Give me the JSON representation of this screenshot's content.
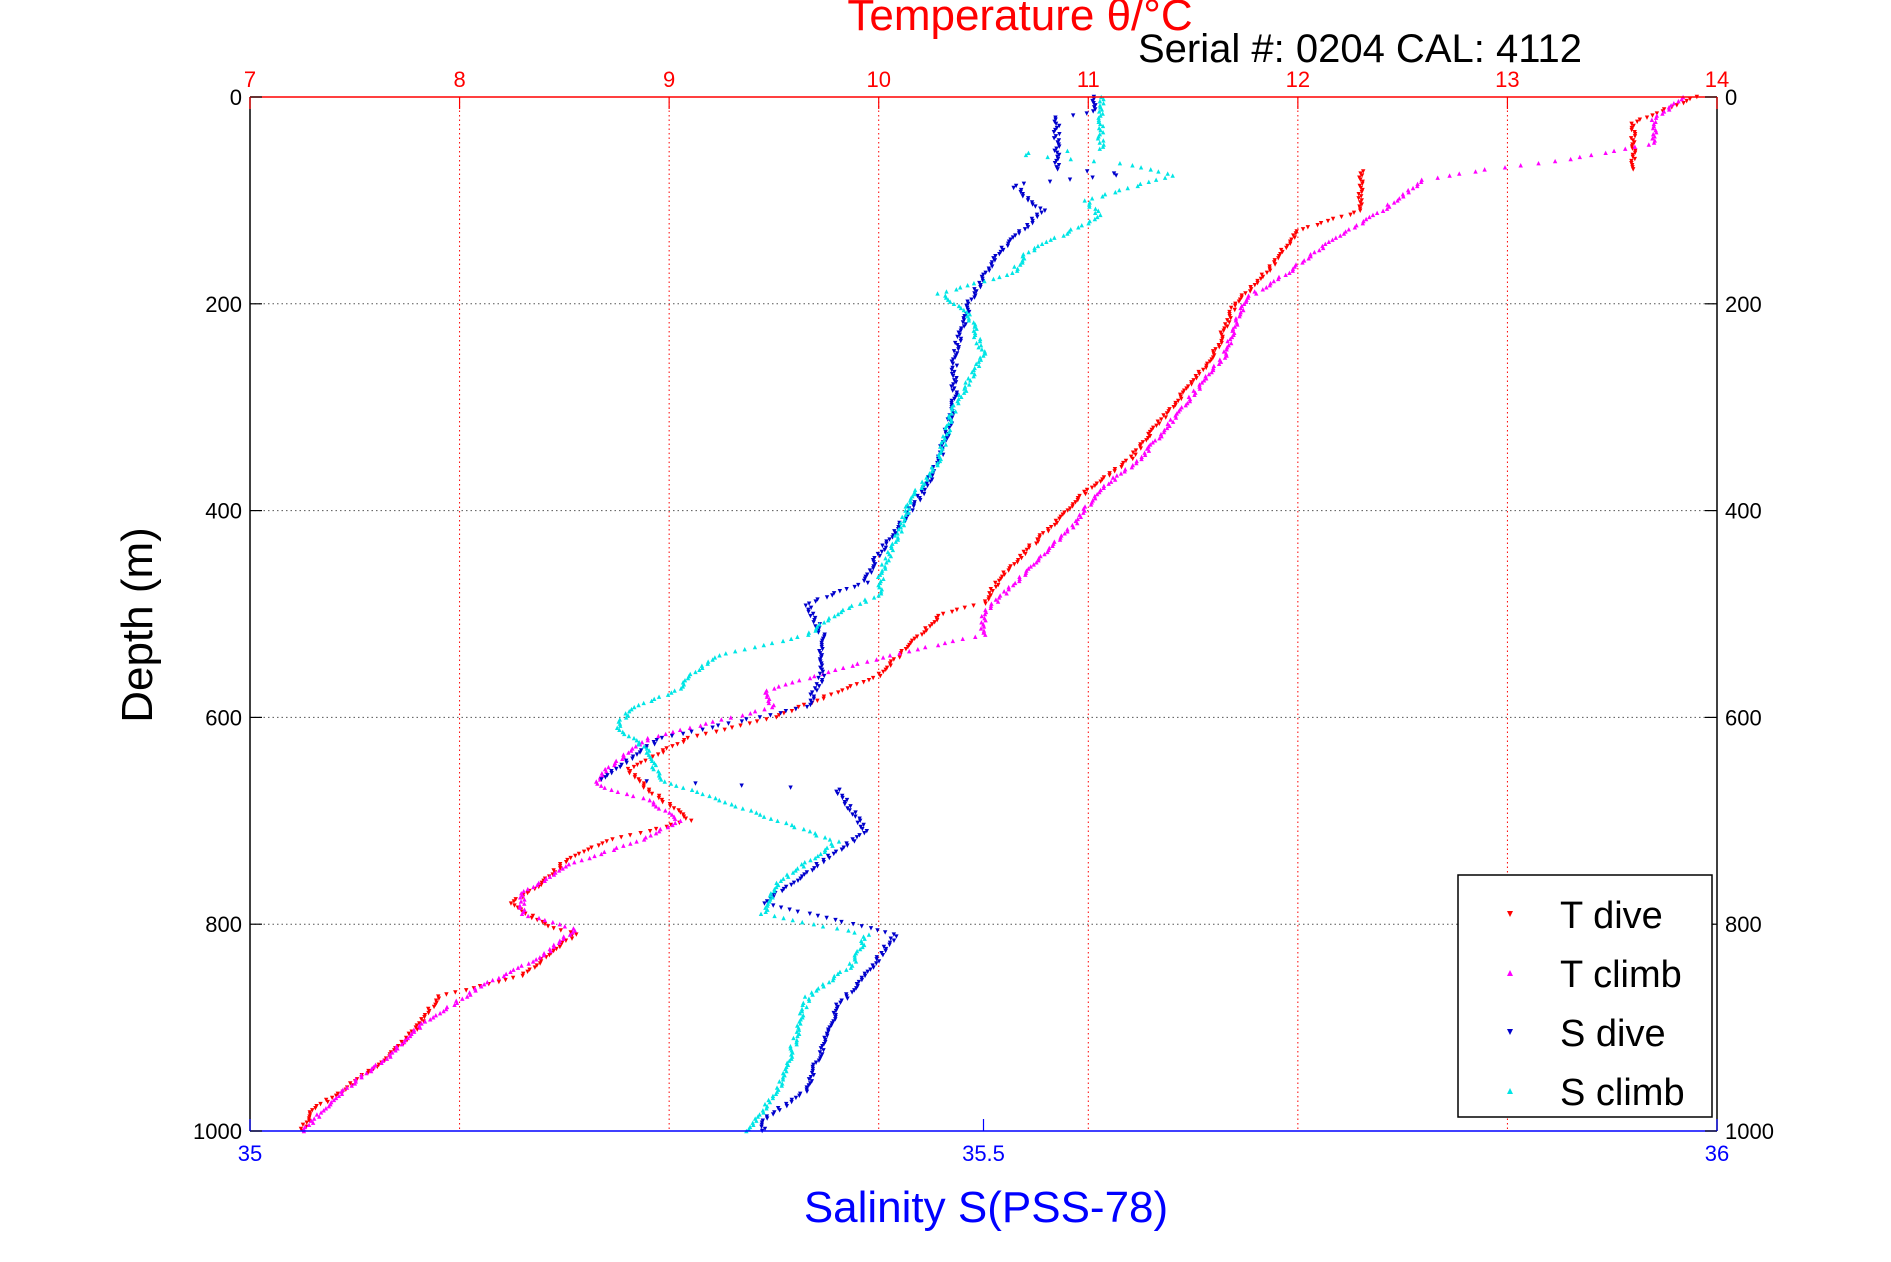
{
  "header": {
    "title": "Temperature θ/°C",
    "serial": "Serial #: 0204  CAL: 4112"
  },
  "chart_data": {
    "type": "scatter",
    "title": "Temperature θ/°C",
    "annotation": "Serial #: 0204  CAL: 4112",
    "ylabel": "Depth (m)",
    "xlabel_bottom": "Salinity S(PSS-78)",
    "xlabel_top": "Temperature θ/°C",
    "ylim": [
      0,
      1000
    ],
    "y_reversed": true,
    "x_bottom_lim": [
      35,
      36
    ],
    "x_top_lim": [
      7,
      14
    ],
    "y_ticks": [
      "0",
      "200",
      "400",
      "600",
      "800",
      "1000"
    ],
    "y_tick_values": [
      0,
      200,
      400,
      600,
      800,
      1000
    ],
    "x_bottom_ticks": [
      "35",
      "35.5",
      "36"
    ],
    "x_bottom_tick_values": [
      35,
      35.5,
      36
    ],
    "x_top_ticks": [
      "7",
      "8",
      "9",
      "10",
      "11",
      "12",
      "13",
      "14"
    ],
    "x_top_tick_values": [
      7,
      8,
      9,
      10,
      11,
      12,
      13,
      14
    ],
    "grid": true,
    "legend_position": "bottom-right",
    "colors": {
      "t_dive": "#ff0000",
      "t_climb": "#ff00ff",
      "s_dive": "#0000cc",
      "s_climb": "#00e5e5",
      "temperature_axis": "#ff0000",
      "salinity_axis": "#0000ff"
    },
    "series": [
      {
        "name": "T dive",
        "axis": "temperature",
        "profile": [
          [
            0,
            13.9
          ],
          [
            25,
            13.6
          ],
          [
            70,
            13.6
          ],
          [
            72,
            12.3
          ],
          [
            110,
            12.3
          ],
          [
            130,
            12.0
          ],
          [
            170,
            11.85
          ],
          [
            200,
            11.7
          ],
          [
            250,
            11.6
          ],
          [
            300,
            11.4
          ],
          [
            350,
            11.2
          ],
          [
            380,
            11.0
          ],
          [
            420,
            10.8
          ],
          [
            460,
            10.6
          ],
          [
            490,
            10.5
          ],
          [
            500,
            10.3
          ],
          [
            530,
            10.15
          ],
          [
            560,
            10.0
          ],
          [
            600,
            9.5
          ],
          [
            620,
            9.1
          ],
          [
            650,
            8.8
          ],
          [
            670,
            8.9
          ],
          [
            700,
            9.1
          ],
          [
            720,
            8.7
          ],
          [
            740,
            8.5
          ],
          [
            760,
            8.4
          ],
          [
            780,
            8.25
          ],
          [
            800,
            8.4
          ],
          [
            810,
            8.55
          ],
          [
            850,
            8.3
          ],
          [
            870,
            7.9
          ],
          [
            900,
            7.8
          ],
          [
            930,
            7.65
          ],
          [
            960,
            7.45
          ],
          [
            980,
            7.3
          ],
          [
            1000,
            7.25
          ]
        ]
      },
      {
        "name": "T climb",
        "axis": "temperature",
        "profile": [
          [
            0,
            13.85
          ],
          [
            20,
            13.7
          ],
          [
            45,
            13.7
          ],
          [
            60,
            13.3
          ],
          [
            70,
            12.9
          ],
          [
            80,
            12.6
          ],
          [
            110,
            12.4
          ],
          [
            140,
            12.15
          ],
          [
            170,
            11.95
          ],
          [
            195,
            11.75
          ],
          [
            220,
            11.7
          ],
          [
            250,
            11.65
          ],
          [
            300,
            11.45
          ],
          [
            350,
            11.25
          ],
          [
            380,
            11.05
          ],
          [
            410,
            10.95
          ],
          [
            450,
            10.75
          ],
          [
            480,
            10.6
          ],
          [
            500,
            10.5
          ],
          [
            520,
            10.5
          ],
          [
            540,
            10.05
          ],
          [
            560,
            9.7
          ],
          [
            575,
            9.45
          ],
          [
            590,
            9.5
          ],
          [
            620,
            8.9
          ],
          [
            650,
            8.7
          ],
          [
            665,
            8.65
          ],
          [
            680,
            8.9
          ],
          [
            700,
            9.05
          ],
          [
            720,
            8.85
          ],
          [
            740,
            8.55
          ],
          [
            770,
            8.3
          ],
          [
            790,
            8.3
          ],
          [
            805,
            8.55
          ],
          [
            830,
            8.4
          ],
          [
            860,
            8.1
          ],
          [
            900,
            7.8
          ],
          [
            930,
            7.65
          ],
          [
            960,
            7.45
          ],
          [
            990,
            7.3
          ],
          [
            1000,
            7.25
          ]
        ]
      },
      {
        "name": "S dive",
        "axis": "salinity",
        "profile": [
          [
            0,
            35.575
          ],
          [
            15,
            35.575
          ],
          [
            20,
            35.55
          ],
          [
            60,
            35.55
          ],
          [
            70,
            35.55
          ],
          [
            75,
            35.6
          ],
          [
            85,
            35.52
          ],
          [
            110,
            35.54
          ],
          [
            125,
            35.53
          ],
          [
            150,
            35.51
          ],
          [
            175,
            35.5
          ],
          [
            200,
            35.49
          ],
          [
            250,
            35.48
          ],
          [
            300,
            35.48
          ],
          [
            350,
            35.47
          ],
          [
            380,
            35.46
          ],
          [
            420,
            35.44
          ],
          [
            450,
            35.425
          ],
          [
            470,
            35.42
          ],
          [
            490,
            35.38
          ],
          [
            520,
            35.39
          ],
          [
            560,
            35.39
          ],
          [
            590,
            35.38
          ],
          [
            620,
            35.28
          ],
          [
            640,
            35.26
          ],
          [
            650,
            35.25
          ],
          [
            660,
            35.24
          ],
          [
            670,
            35.4
          ],
          [
            690,
            35.41
          ],
          [
            710,
            35.42
          ],
          [
            740,
            35.39
          ],
          [
            780,
            35.35
          ],
          [
            810,
            35.44
          ],
          [
            830,
            35.43
          ],
          [
            850,
            35.42
          ],
          [
            880,
            35.4
          ],
          [
            920,
            35.39
          ],
          [
            960,
            35.38
          ],
          [
            990,
            35.35
          ],
          [
            1000,
            35.35
          ]
        ]
      },
      {
        "name": "S climb",
        "axis": "salinity",
        "profile": [
          [
            0,
            35.58
          ],
          [
            30,
            35.58
          ],
          [
            50,
            35.58
          ],
          [
            55,
            35.52
          ],
          [
            65,
            35.6
          ],
          [
            75,
            35.63
          ],
          [
            100,
            35.57
          ],
          [
            115,
            35.58
          ],
          [
            150,
            35.53
          ],
          [
            170,
            35.52
          ],
          [
            190,
            35.47
          ],
          [
            210,
            35.49
          ],
          [
            250,
            35.5
          ],
          [
            300,
            35.48
          ],
          [
            350,
            35.47
          ],
          [
            390,
            35.45
          ],
          [
            430,
            35.44
          ],
          [
            460,
            35.43
          ],
          [
            480,
            35.43
          ],
          [
            500,
            35.4
          ],
          [
            520,
            35.38
          ],
          [
            540,
            35.32
          ],
          [
            560,
            35.3
          ],
          [
            575,
            35.29
          ],
          [
            590,
            35.26
          ],
          [
            610,
            35.25
          ],
          [
            630,
            35.27
          ],
          [
            660,
            35.28
          ],
          [
            690,
            35.34
          ],
          [
            720,
            35.4
          ],
          [
            760,
            35.36
          ],
          [
            790,
            35.35
          ],
          [
            810,
            35.42
          ],
          [
            840,
            35.41
          ],
          [
            870,
            35.38
          ],
          [
            920,
            35.37
          ],
          [
            960,
            35.36
          ],
          [
            1000,
            35.34
          ]
        ]
      }
    ]
  }
}
